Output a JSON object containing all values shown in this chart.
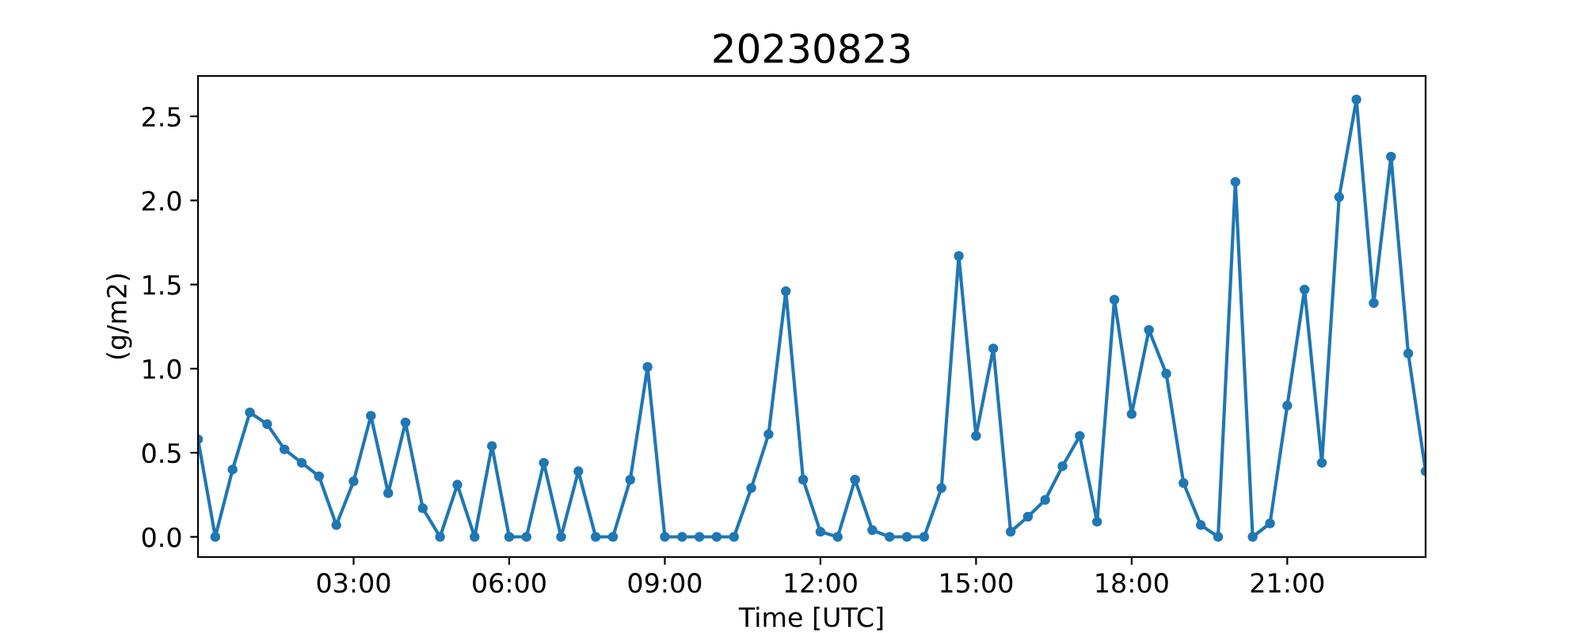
{
  "chart_data": {
    "type": "line",
    "title": "20230823",
    "xlabel": "Time [UTC]",
    "ylabel": "(g/m2)",
    "x": [
      0,
      0.333,
      0.667,
      1,
      1.333,
      1.667,
      2,
      2.333,
      2.667,
      3,
      3.333,
      3.667,
      4,
      4.333,
      4.667,
      5,
      5.333,
      5.667,
      6,
      6.333,
      6.667,
      7,
      7.333,
      7.667,
      8,
      8.333,
      8.667,
      9,
      9.333,
      9.667,
      10,
      10.333,
      10.667,
      11,
      11.333,
      11.667,
      12,
      12.333,
      12.667,
      13,
      13.333,
      13.667,
      14,
      14.333,
      14.667,
      15,
      15.333,
      15.667,
      16,
      16.333,
      16.667,
      17,
      17.333,
      17.667,
      18,
      18.333,
      18.667,
      19,
      19.333,
      19.667,
      20,
      20.333,
      20.667,
      21,
      21.333,
      21.667,
      22,
      22.333,
      22.667,
      23,
      23.333,
      23.667
    ],
    "series": [
      {
        "color": "#1f77b4",
        "values": [
          0.58,
          0.0,
          0.4,
          0.74,
          0.67,
          0.52,
          0.44,
          0.36,
          0.07,
          0.33,
          0.72,
          0.26,
          0.68,
          0.17,
          0.0,
          0.31,
          0.0,
          0.54,
          0.0,
          0.0,
          0.44,
          0.0,
          0.39,
          0.0,
          0.0,
          0.34,
          1.01,
          0.0,
          0.0,
          0.0,
          0.0,
          0.0,
          0.29,
          0.61,
          1.46,
          0.34,
          0.03,
          0.0,
          0.34,
          0.04,
          0.0,
          0.0,
          0.0,
          0.29,
          1.67,
          0.6,
          1.12,
          0.03,
          0.12,
          0.22,
          0.42,
          0.6,
          0.09,
          1.41,
          0.73,
          1.23,
          0.97,
          0.32,
          0.07,
          0.0,
          2.11,
          0.0,
          0.08,
          0.78,
          1.47,
          0.44,
          2.02,
          2.6,
          1.39,
          2.26,
          1.09,
          0.39
        ]
      }
    ],
    "xlim": [
      0,
      23.667
    ],
    "xticks": [
      {
        "value": 3,
        "label": "03:00"
      },
      {
        "value": 6,
        "label": "06:00"
      },
      {
        "value": 9,
        "label": "09:00"
      },
      {
        "value": 12,
        "label": "12:00"
      },
      {
        "value": 15,
        "label": "15:00"
      },
      {
        "value": 18,
        "label": "18:00"
      },
      {
        "value": 21,
        "label": "21:00"
      }
    ],
    "ylim": [
      -0.12,
      2.74
    ],
    "yticks": [
      {
        "value": 0,
        "label": "0.0"
      },
      0.5,
      {
        "value": 1,
        "label": "1.0"
      },
      1.5,
      {
        "value": 2,
        "label": "2.0"
      },
      2.5
    ],
    "marker": "circle",
    "line_style": "solid",
    "grid": false,
    "legend": false
  }
}
